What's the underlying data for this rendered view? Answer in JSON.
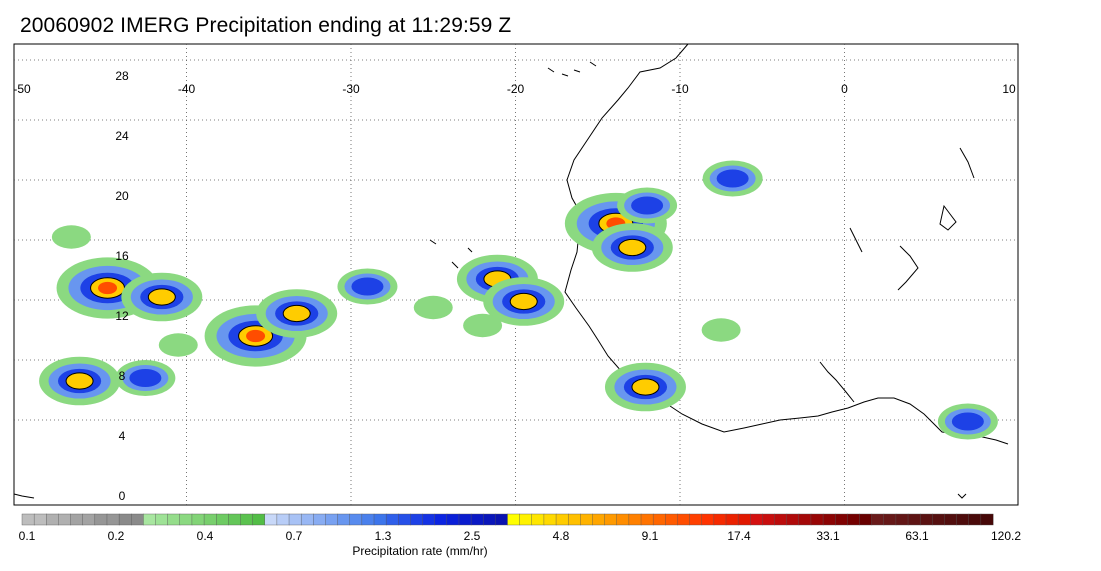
{
  "title": "20060902 IMERG Precipitation ending at 11:29:59 Z",
  "map": {
    "lon_range": [
      -50,
      10
    ],
    "lat_range": [
      -0.5,
      30
    ],
    "lon_ticks": [
      "-50",
      "-40",
      "-30",
      "-20",
      "-10",
      "0",
      "10"
    ],
    "lat_ticks": [
      "0",
      "4",
      "8",
      "12",
      "16",
      "20",
      "24",
      "28"
    ],
    "grid": true
  },
  "legend": {
    "label": "Precipitation rate (mm/hr)",
    "tick_labels": [
      "0.1",
      "0.2",
      "0.4",
      "0.7",
      "1.3",
      "2.5",
      "4.8",
      "9.1",
      "17.4",
      "33.1",
      "63.1",
      "120.2"
    ],
    "colors": [
      "#bdbdbd",
      "#bdbdbd",
      "#b0b0b0",
      "#b0b0b0",
      "#a3a3a3",
      "#a3a3a3",
      "#969696",
      "#969696",
      "#8a8a8a",
      "#8a8a8a",
      "#a8e6a0",
      "#9ee296",
      "#95dd8b",
      "#8bd981",
      "#82d477",
      "#78cf6d",
      "#6ecb63",
      "#64c659",
      "#5bc24f",
      "#52bd46",
      "#c8d8f8",
      "#b8cdf7",
      "#a8c2f5",
      "#98b7f4",
      "#88acf2",
      "#78a1f1",
      "#6896ef",
      "#588bee",
      "#4a80ec",
      "#3c75eb",
      "#2f5fea",
      "#2650e8",
      "#1d41e6",
      "#1432e4",
      "#0b24e2",
      "#0a1fd8",
      "#0a1cce",
      "#0a19c4",
      "#0a16ba",
      "#0a13b0",
      "#ffff00",
      "#fff200",
      "#ffe600",
      "#ffd900",
      "#ffcc00",
      "#ffc000",
      "#ffb300",
      "#ffa600",
      "#ff9a00",
      "#ff8d00",
      "#ff8000",
      "#ff7300",
      "#ff6600",
      "#ff5a00",
      "#ff4d00",
      "#ff4000",
      "#ff3300",
      "#f52a00",
      "#eb2100",
      "#e11800",
      "#d41010",
      "#c80e0e",
      "#bc0c0c",
      "#b00a0a",
      "#a40808",
      "#980606",
      "#8c0404",
      "#800202",
      "#740000",
      "#680000",
      "#6a1a1a",
      "#661818",
      "#621616",
      "#5e1414",
      "#5a1212",
      "#561010",
      "#520e0e",
      "#4e0c0c",
      "#4a0a0a",
      "#460808"
    ]
  },
  "precip_cells": [
    {
      "lon": -44.8,
      "lat": 12.8,
      "intensity": 4
    },
    {
      "lon": -41.5,
      "lat": 12.2,
      "intensity": 3
    },
    {
      "lon": -35.8,
      "lat": 9.6,
      "intensity": 4
    },
    {
      "lon": -33.3,
      "lat": 11.1,
      "intensity": 3
    },
    {
      "lon": -46.5,
      "lat": 6.6,
      "intensity": 3
    },
    {
      "lon": -42.5,
      "lat": 6.8,
      "intensity": 2
    },
    {
      "lon": -21.1,
      "lat": 13.4,
      "intensity": 3
    },
    {
      "lon": -19.5,
      "lat": 11.9,
      "intensity": 3
    },
    {
      "lon": -13.9,
      "lat": 17.1,
      "intensity": 4
    },
    {
      "lon": -12.0,
      "lat": 18.3,
      "intensity": 2
    },
    {
      "lon": -12.9,
      "lat": 15.5,
      "intensity": 3
    },
    {
      "lon": -12.1,
      "lat": 6.2,
      "intensity": 3
    },
    {
      "lon": -6.8,
      "lat": 20.1,
      "intensity": 2
    },
    {
      "lon": -7.5,
      "lat": 10.0,
      "intensity": 1
    },
    {
      "lon": -29.0,
      "lat": 12.9,
      "intensity": 2
    },
    {
      "lon": -40.5,
      "lat": 9.0,
      "intensity": 1
    },
    {
      "lon": -47.0,
      "lat": 16.2,
      "intensity": 1
    },
    {
      "lon": 7.5,
      "lat": 3.9,
      "intensity": 2
    },
    {
      "lon": -25.0,
      "lat": 11.5,
      "intensity": 1
    },
    {
      "lon": -22.0,
      "lat": 10.3,
      "intensity": 1
    }
  ]
}
